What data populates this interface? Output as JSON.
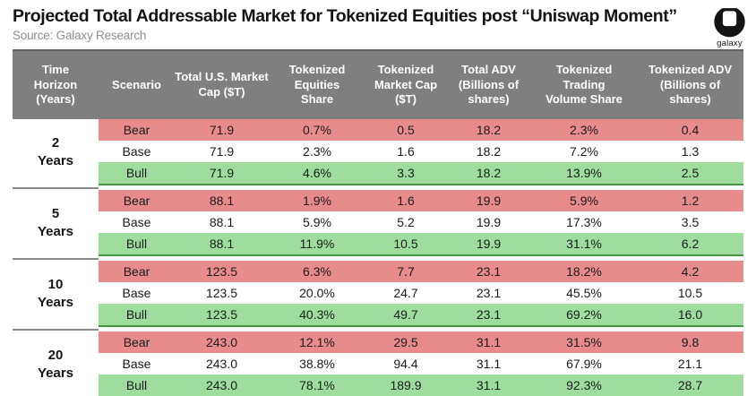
{
  "masthead": {
    "title": "Projected Total Addressable Market for Tokenized Equities post “Uniswap Moment”",
    "source": "Source: Galaxy Research",
    "logo_label": "galaxy"
  },
  "colors": {
    "header_bg": "#7f7f7f",
    "bear_bg": "#e88b8b",
    "base_bg": "#ffffff",
    "bull_bg": "#9edd9e",
    "bull_border": "#459545",
    "header_text": "#ffffff",
    "source_text": "#8f8f8f"
  },
  "chart_data": {
    "type": "table",
    "title": "Projected Total Addressable Market for Tokenized Equities post “Uniswap Moment”",
    "source": "Source: Galaxy Research",
    "columns": [
      "Time\nHorizon\n(Years)",
      "Scenario",
      "Total U.S. Market\nCap ($T)",
      "Tokenized\nEquities\nShare",
      "Tokenized\nMarket Cap\n($T)",
      "Total ADV\n(Billions of\nshares)",
      "Tokenized\nTrading\nVolume Share",
      "Tokenized ADV\n(Billions of\nshares)"
    ],
    "groups": [
      {
        "horizon": "2 Years",
        "scenarios": [
          {
            "name": "Bear",
            "type": "bear",
            "values": [
              "71.9",
              "0.7%",
              "0.5",
              "18.2",
              "2.3%",
              "0.4"
            ]
          },
          {
            "name": "Base",
            "type": "base",
            "values": [
              "71.9",
              "2.3%",
              "1.6",
              "18.2",
              "7.2%",
              "1.3"
            ]
          },
          {
            "name": "Bull",
            "type": "bull",
            "values": [
              "71.9",
              "4.6%",
              "3.3",
              "18.2",
              "13.9%",
              "2.5"
            ]
          }
        ]
      },
      {
        "horizon": "5 Years",
        "scenarios": [
          {
            "name": "Bear",
            "type": "bear",
            "values": [
              "88.1",
              "1.9%",
              "1.6",
              "19.9",
              "5.9%",
              "1.2"
            ]
          },
          {
            "name": "Base",
            "type": "base",
            "values": [
              "88.1",
              "5.9%",
              "5.2",
              "19.9",
              "17.3%",
              "3.5"
            ]
          },
          {
            "name": "Bull",
            "type": "bull",
            "values": [
              "88.1",
              "11.9%",
              "10.5",
              "19.9",
              "31.1%",
              "6.2"
            ]
          }
        ]
      },
      {
        "horizon": "10 Years",
        "scenarios": [
          {
            "name": "Bear",
            "type": "bear",
            "values": [
              "123.5",
              "6.3%",
              "7.7",
              "23.1",
              "18.2%",
              "4.2"
            ]
          },
          {
            "name": "Base",
            "type": "base",
            "values": [
              "123.5",
              "20.0%",
              "24.7",
              "23.1",
              "45.5%",
              "10.5"
            ]
          },
          {
            "name": "Bull",
            "type": "bull",
            "values": [
              "123.5",
              "40.3%",
              "49.7",
              "23.1",
              "69.2%",
              "16.0"
            ]
          }
        ]
      },
      {
        "horizon": "20 Years",
        "scenarios": [
          {
            "name": "Bear",
            "type": "bear",
            "values": [
              "243.0",
              "12.1%",
              "29.5",
              "31.1",
              "31.5%",
              "9.8"
            ]
          },
          {
            "name": "Base",
            "type": "base",
            "values": [
              "243.0",
              "38.8%",
              "94.4",
              "31.1",
              "67.9%",
              "21.1"
            ]
          },
          {
            "name": "Bull",
            "type": "bull",
            "values": [
              "243.0",
              "78.1%",
              "189.9",
              "31.1",
              "92.3%",
              "28.7"
            ]
          }
        ]
      }
    ]
  }
}
